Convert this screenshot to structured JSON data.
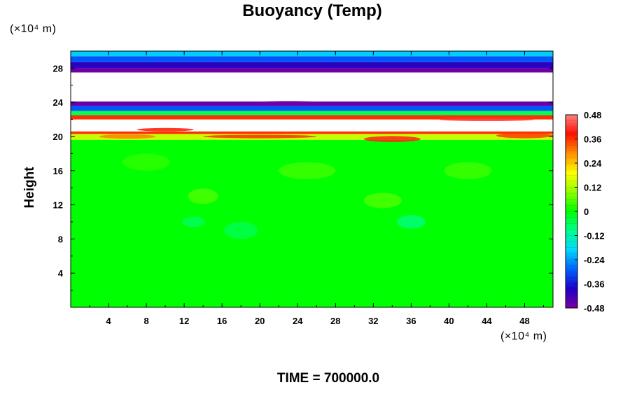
{
  "chart_data": {
    "type": "heatmap",
    "title": "Buoyancy (Temp)",
    "ylabel": "Height",
    "x_unit": "(×10⁴ m)",
    "y_unit": "(×10⁴ m)",
    "x_range": [
      0,
      51
    ],
    "y_range": [
      0,
      30
    ],
    "x_ticks": [
      "4",
      "8",
      "12",
      "16",
      "20",
      "24",
      "28",
      "32",
      "36",
      "40",
      "44",
      "48"
    ],
    "y_ticks": [
      "4",
      "8",
      "12",
      "16",
      "20",
      "24",
      "28"
    ],
    "colorbar": {
      "range": [
        -0.48,
        0.48
      ],
      "ticks": [
        "0.48",
        "0.36",
        "0.24",
        "0.12",
        "0",
        "-0.12",
        "-0.24",
        "-0.36",
        "-0.48"
      ]
    },
    "bands": [
      {
        "y_from": 0,
        "y_to": 19.6,
        "value": 0.0
      },
      {
        "y_from": 19.6,
        "y_to": 20.3,
        "value": 0.14
      },
      {
        "y_from": 20.3,
        "y_to": 20.6,
        "value": 0.36
      },
      {
        "y_from": 20.6,
        "y_to": 22.0,
        "value": null
      },
      {
        "y_from": 22.0,
        "y_to": 22.5,
        "value": 0.36
      },
      {
        "y_from": 22.5,
        "y_to": 23.0,
        "value": -0.06
      },
      {
        "y_from": 23.0,
        "y_to": 23.6,
        "value": -0.3
      },
      {
        "y_from": 23.6,
        "y_to": 24.1,
        "value": -0.46
      },
      {
        "y_from": 24.1,
        "y_to": 27.5,
        "value": null
      },
      {
        "y_from": 27.5,
        "y_to": 28.0,
        "value": -0.47
      },
      {
        "y_from": 28.0,
        "y_to": 28.7,
        "value": -0.4
      },
      {
        "y_from": 28.7,
        "y_to": 29.4,
        "value": -0.3
      },
      {
        "y_from": 29.4,
        "y_to": 30.0,
        "value": -0.2
      }
    ]
  },
  "time_label": "TIME = 700000.0"
}
